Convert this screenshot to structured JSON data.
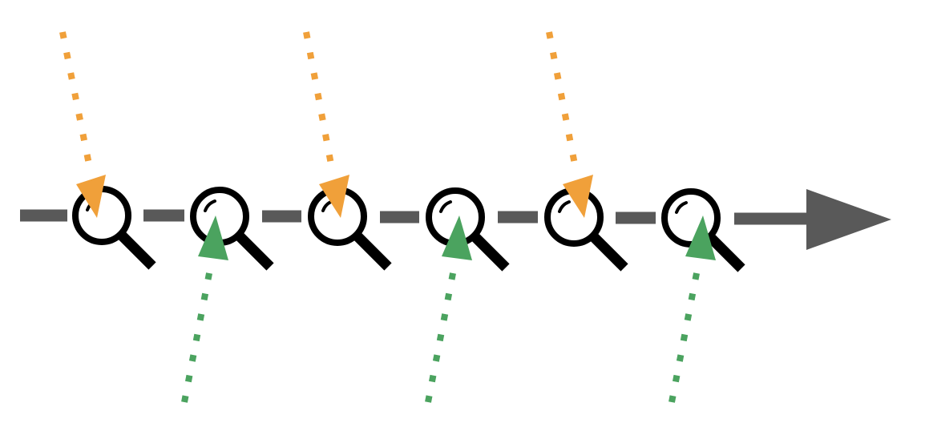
{
  "colors": {
    "background": "#ffffff",
    "timeline": "#595959",
    "magnifier": "#000000",
    "incoming_from_above": "#f0a03a",
    "incoming_from_below": "#4ba35f"
  },
  "timeline": {
    "arrow_direction": "right",
    "search_step_count": 6
  },
  "search_steps": [
    {
      "icon": "magnifier-icon",
      "incoming_arrow": "from-above",
      "arrow_color": "#f0a03a"
    },
    {
      "icon": "magnifier-icon",
      "incoming_arrow": "from-below",
      "arrow_color": "#4ba35f"
    },
    {
      "icon": "magnifier-icon",
      "incoming_arrow": "from-above",
      "arrow_color": "#f0a03a"
    },
    {
      "icon": "magnifier-icon",
      "incoming_arrow": "from-below",
      "arrow_color": "#4ba35f"
    },
    {
      "icon": "magnifier-icon",
      "incoming_arrow": "from-above",
      "arrow_color": "#f0a03a"
    },
    {
      "icon": "magnifier-icon",
      "incoming_arrow": "from-below",
      "arrow_color": "#4ba35f"
    }
  ]
}
